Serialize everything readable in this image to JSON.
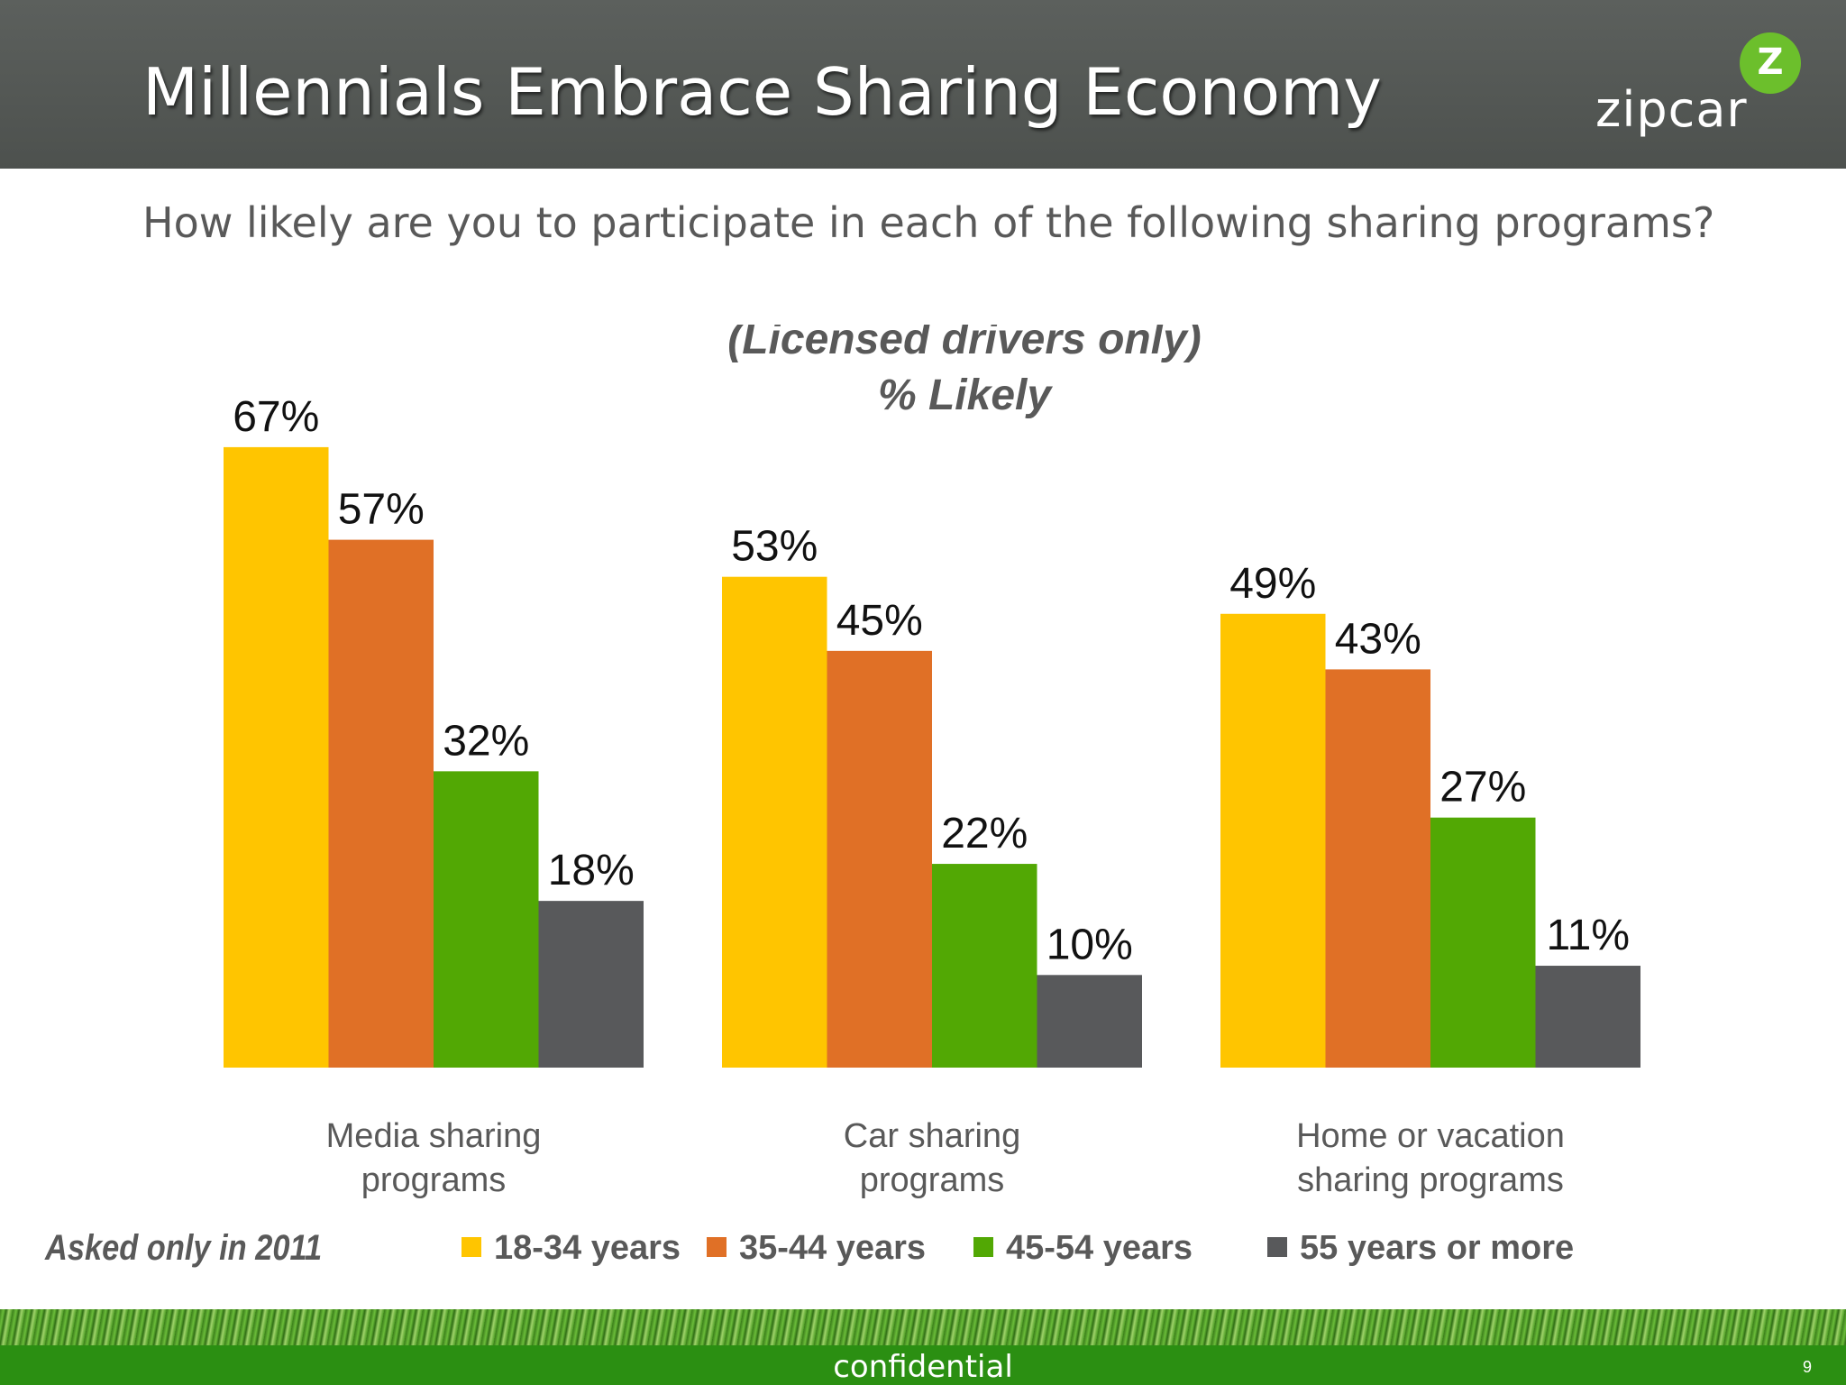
{
  "header": {
    "title": "Millennials Embrace Sharing Economy",
    "logo_text": "zipcar",
    "logo_badge": "Z"
  },
  "subtitle": "How likely are you to participate in each of the following sharing programs?",
  "note": "Asked only in 2011",
  "footer": {
    "label": "confidential",
    "page_number": "9"
  },
  "chart_data": {
    "type": "bar",
    "title": "(Licensed drivers only)",
    "subtitle": "% Likely",
    "categories": [
      "Media sharing\nprograms",
      "Car sharing\nprograms",
      "Home or vacation\nsharing programs"
    ],
    "series": [
      {
        "name": "18-34 years",
        "values": [
          67,
          53,
          49
        ],
        "color": "#ffc500"
      },
      {
        "name": "35-44 years",
        "values": [
          57,
          45,
          43
        ],
        "color": "#e07026"
      },
      {
        "name": "45-54 years",
        "values": [
          32,
          22,
          27
        ],
        "color": "#52a804"
      },
      {
        "name": "55 years or more",
        "values": [
          18,
          10,
          11
        ],
        "color": "#58595b"
      }
    ],
    "value_suffix": "%",
    "ylim": [
      0,
      100
    ],
    "legend_position": "bottom",
    "grid": false
  }
}
